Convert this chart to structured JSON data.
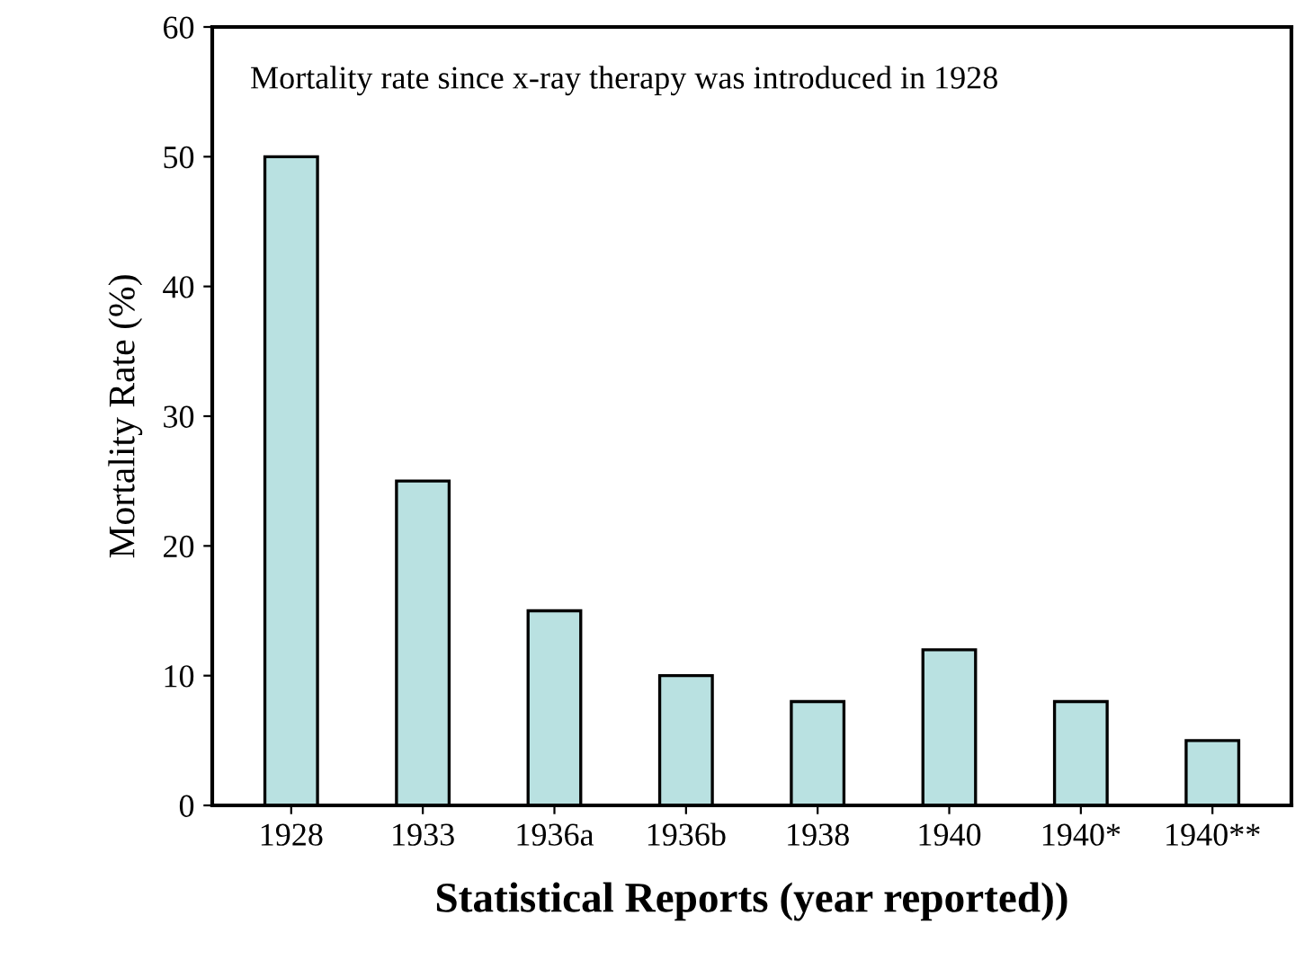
{
  "chart_data": {
    "type": "bar",
    "xlabel": "Statistical Reports (year reported))",
    "ylabel": "Mortality Rate (%)",
    "annotations": [
      "Mortality rate since x-ray therapy was introduced in 1928"
    ],
    "categories": [
      "1928",
      "1933",
      "1936a",
      "1936b",
      "1938",
      "1940",
      "1940*",
      "1940**"
    ],
    "values": [
      50,
      25,
      15,
      10,
      8,
      12,
      8,
      5
    ],
    "color": "#b9e1e1",
    "ylim": [
      0,
      60
    ],
    "yticks": [
      0,
      10,
      20,
      30,
      40,
      50,
      60
    ],
    "grid": false,
    "legend": false
  }
}
